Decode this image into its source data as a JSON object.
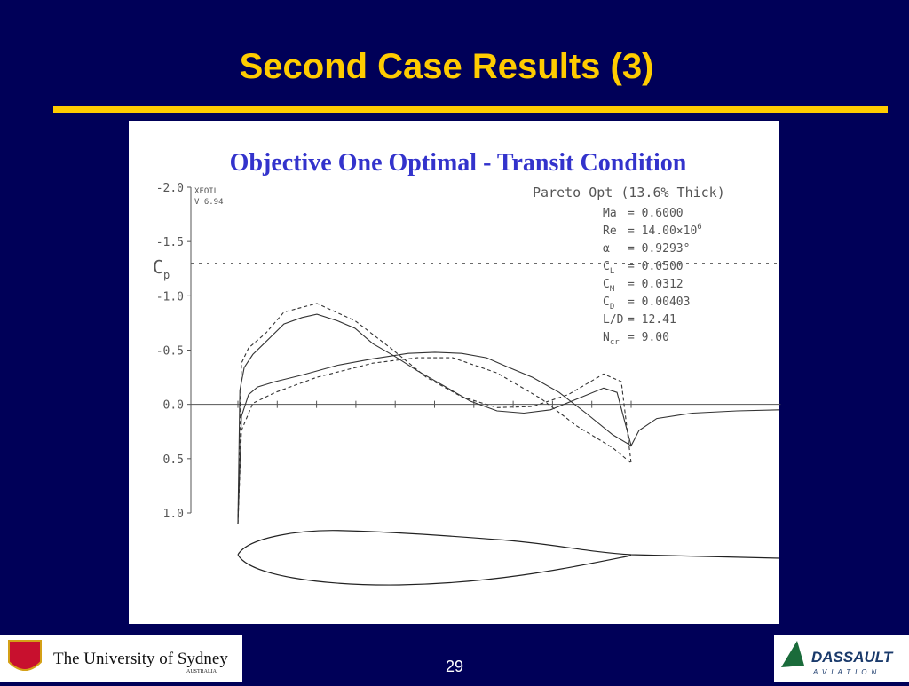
{
  "slide": {
    "title": "Second Case Results (3)",
    "page_number": "29",
    "left_logo": {
      "name": "The University of Sydney",
      "country": "AUSTRALIA"
    },
    "right_logo": {
      "name": "DASSAULT",
      "tagline": "AVIATION"
    }
  },
  "chart_data": {
    "type": "line",
    "title": "Objective One Optimal - Transit Condition",
    "program": "XFOIL",
    "version": "V 6.94",
    "case_label": "Pareto Opt (13.6% Thick)",
    "y_label": {
      "text": "C",
      "sub": "p"
    },
    "parameters": [
      {
        "symbol": "Ma",
        "text": "= 0.6000"
      },
      {
        "symbol": "Re",
        "text": "= 14.00×10",
        "sup": "6"
      },
      {
        "symbol": "α",
        "text": "= 0.9293°"
      },
      {
        "symbol": "C",
        "sub": "L",
        "text": "= 0.0500"
      },
      {
        "symbol": "C",
        "sub": "M",
        "text": "= 0.0312"
      },
      {
        "symbol": "C",
        "sub": "D",
        "text": "= 0.00403"
      },
      {
        "symbol": "L/D",
        "text": "= 12.41"
      },
      {
        "symbol": "N",
        "sub": "cr",
        "text": "= 9.00"
      }
    ],
    "y_inverted": true,
    "xlim": [
      -0.12,
      1.38
    ],
    "ylim": [
      -2.0,
      1.0
    ],
    "yticks": [
      {
        "value": -2.0,
        "label": "-2.0"
      },
      {
        "value": -1.5,
        "label": "-1.5"
      },
      {
        "value": -1.0,
        "label": "-1.0"
      },
      {
        "value": -0.5,
        "label": "-0.5"
      },
      {
        "value": 0,
        "label": "0.0"
      },
      {
        "value": 0.5,
        "label": "0.5"
      },
      {
        "value": 1.0,
        "label": "1.0"
      }
    ],
    "xticks": [
      0,
      0.1,
      0.2,
      0.3,
      0.4,
      0.5,
      0.6,
      0.7,
      0.8,
      0.9,
      1.0
    ],
    "cp_critical": -1.3,
    "series": [
      {
        "color": "#333333",
        "dashed": false,
        "x": [
          0,
          0.005,
          0.016,
          0.038,
          0.072,
          0.117,
          0.163,
          0.201,
          0.253,
          0.298,
          0.343,
          0.4,
          0.456,
          0.524,
          0.591,
          0.659,
          0.727,
          0.795,
          0.862,
          0.93,
          0.964,
          1.0,
          1.02,
          1.065,
          1.156,
          1.269,
          1.377
        ],
        "values": [
          1.1,
          -0.13,
          -0.34,
          -0.46,
          -0.58,
          -0.74,
          -0.8,
          -0.83,
          -0.77,
          -0.7,
          -0.56,
          -0.44,
          -0.31,
          -0.17,
          -0.03,
          0.06,
          0.08,
          0.05,
          -0.05,
          -0.15,
          -0.11,
          0.38,
          0.24,
          0.13,
          0.08,
          0.06,
          0.05
        ]
      },
      {
        "color": "#333333",
        "dashed": false,
        "x": [
          0,
          0.009,
          0.027,
          0.05,
          0.095,
          0.163,
          0.253,
          0.343,
          0.433,
          0.501,
          0.569,
          0.632,
          0.682,
          0.749,
          0.817,
          0.885,
          0.953,
          1.0
        ],
        "values": [
          1.1,
          0.11,
          -0.09,
          -0.16,
          -0.21,
          -0.27,
          -0.36,
          -0.42,
          -0.47,
          -0.48,
          -0.47,
          -0.43,
          -0.35,
          -0.25,
          -0.11,
          0.08,
          0.28,
          0.38
        ]
      },
      {
        "color": "#333333",
        "dashed": true,
        "x": [
          0,
          0.009,
          0.027,
          0.072,
          0.117,
          0.201,
          0.298,
          0.388,
          0.479,
          0.569,
          0.659,
          0.749,
          0.84,
          0.93,
          0.975,
          1.0
        ],
        "values": [
          1.1,
          -0.38,
          -0.52,
          -0.66,
          -0.85,
          -0.93,
          -0.77,
          -0.52,
          -0.25,
          -0.07,
          0.03,
          0.02,
          -0.09,
          -0.28,
          -0.21,
          0.54
        ]
      },
      {
        "color": "#333333",
        "dashed": true,
        "x": [
          0,
          0.009,
          0.038,
          0.095,
          0.201,
          0.343,
          0.456,
          0.546,
          0.659,
          0.772,
          0.862,
          0.953,
          1.0
        ],
        "values": [
          1.1,
          0.24,
          -0.01,
          -0.11,
          -0.25,
          -0.38,
          -0.43,
          -0.43,
          -0.29,
          -0.05,
          0.2,
          0.4,
          0.54
        ]
      }
    ]
  }
}
